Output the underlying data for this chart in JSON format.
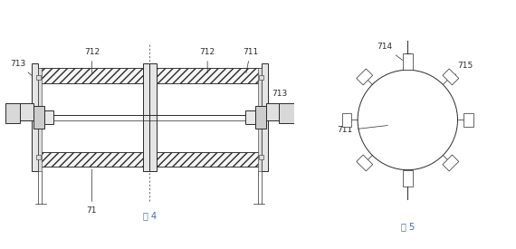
{
  "bg_color": "#ffffff",
  "line_color": "#2a2a2a",
  "fig4_label": "图 4",
  "fig5_label": "图 5",
  "fig4_label_color": "#4466bb",
  "fig5_label_color": "#4466bb"
}
